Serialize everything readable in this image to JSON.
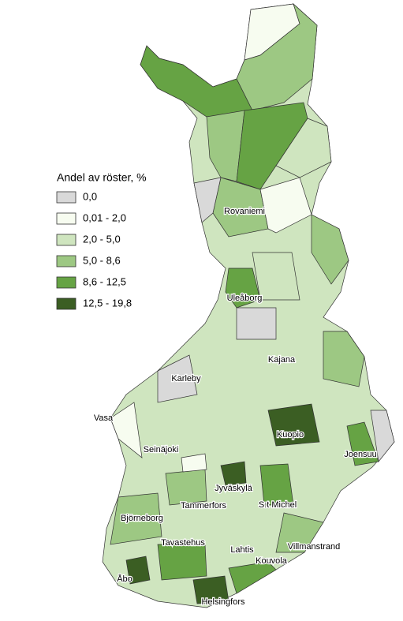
{
  "legend": {
    "title": "Andel av röster, %",
    "items": [
      {
        "label": "0,0",
        "color": "#d9d9d9"
      },
      {
        "label": "0,01 - 2,0",
        "color": "#f7fcf0"
      },
      {
        "label": "2,0 - 5,0",
        "color": "#cfe5bf"
      },
      {
        "label": "5,0 - 8,6",
        "color": "#9dc883"
      },
      {
        "label": "8,6 - 12,5",
        "color": "#66a344"
      },
      {
        "label": "12,5 - 19,8",
        "color": "#3b5e23"
      }
    ]
  },
  "cities": [
    "Rovaniemi",
    "Uleåborg",
    "Kajana",
    "Karleby",
    "Vasa",
    "Kuopio",
    "Seinäjoki",
    "Joensuu",
    "Jyväskylä",
    "S:t Michel",
    "Tammerfors",
    "Björneborg",
    "Tavastehus",
    "Villmanstrand",
    "Lahtis",
    "Kouvola",
    "Åbo",
    "Helsingfors"
  ]
}
